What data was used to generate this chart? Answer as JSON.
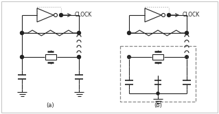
{
  "bg_color": "#ffffff",
  "line_color": "#222222",
  "dashed_color": "#888888",
  "dotted_color": "#aaaaaa",
  "label_a": "(a)",
  "label_b": "(b)",
  "clock_text": "CLOCK",
  "fig_width": 3.19,
  "fig_height": 1.66,
  "dpi": 100
}
